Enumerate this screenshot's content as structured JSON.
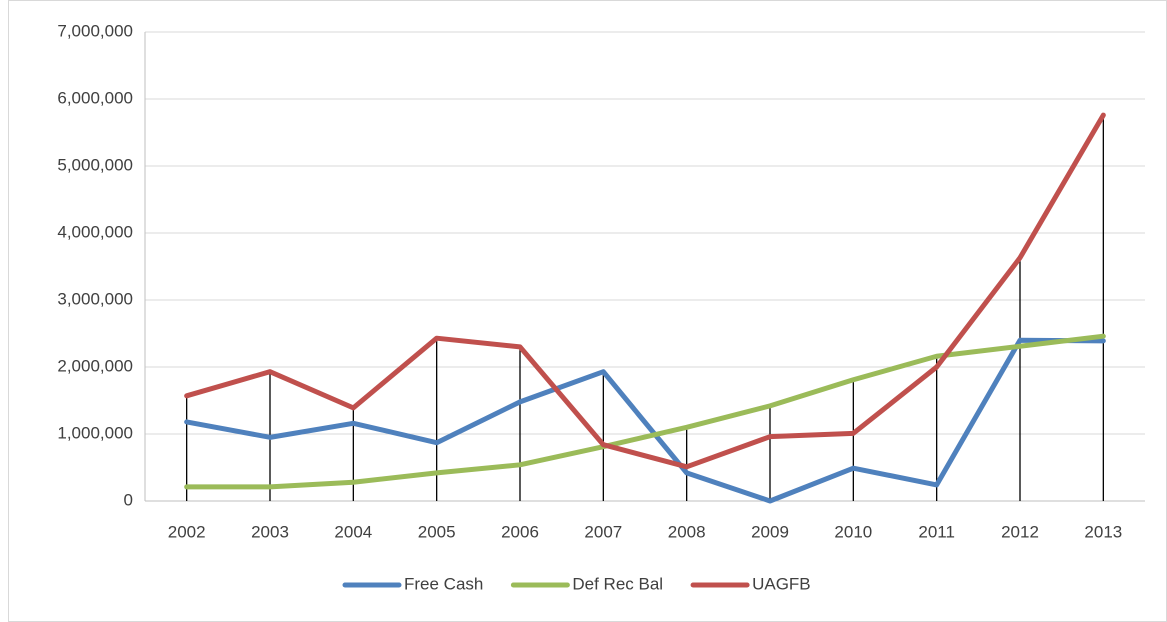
{
  "chart_data": {
    "type": "line",
    "categories": [
      "2002",
      "2003",
      "2004",
      "2005",
      "2006",
      "2007",
      "2008",
      "2009",
      "2010",
      "2011",
      "2012",
      "2013"
    ],
    "series": [
      {
        "name": "Free Cash",
        "color": "#4f81bd",
        "values": [
          1180000,
          950000,
          1160000,
          870000,
          1480000,
          1930000,
          420000,
          0,
          490000,
          240000,
          2400000,
          2390000
        ]
      },
      {
        "name": "Def Rec Bal",
        "color": "#9bbb59",
        "values": [
          210000,
          210000,
          280000,
          420000,
          540000,
          810000,
          1100000,
          1420000,
          1810000,
          2160000,
          2310000,
          2460000
        ]
      },
      {
        "name": "UAGFB",
        "color": "#c0504d",
        "values": [
          1570000,
          1930000,
          1390000,
          2430000,
          2300000,
          840000,
          510000,
          960000,
          1010000,
          2000000,
          3630000,
          5760000
        ]
      }
    ],
    "ylim": [
      0,
      7000000
    ],
    "yticks": [
      0,
      {
        "value": 1000000,
        "label": "1,000,000"
      },
      {
        "value": 2000000,
        "label": "2,000,000"
      },
      {
        "value": 3000000,
        "label": "3,000,000"
      },
      {
        "value": 4000000,
        "label": "4,000,000"
      },
      {
        "value": 5000000,
        "label": "5,000,000"
      },
      {
        "value": 6000000,
        "label": "6,000,000"
      },
      {
        "value": 7000000,
        "label": "7,000,000"
      }
    ],
    "grid": true,
    "drop_lines": true,
    "legend": "bottom"
  }
}
